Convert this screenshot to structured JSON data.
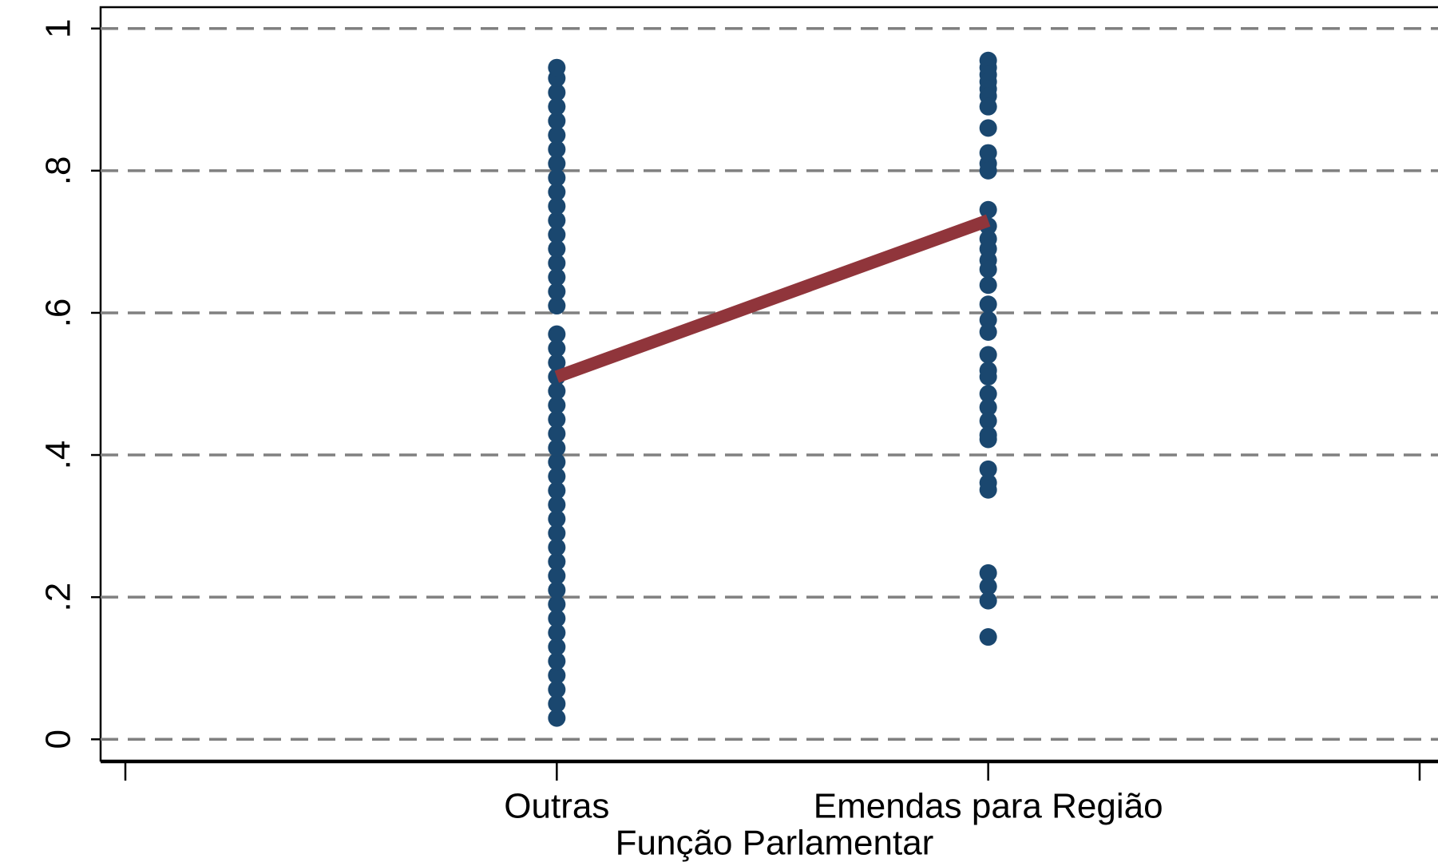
{
  "chart_data": {
    "type": "scatter",
    "x_label": "Função Parlamentar",
    "xlim": [
      -1,
      2
    ],
    "xticks": [
      {
        "value": 0,
        "label": "Outras"
      },
      {
        "value": 1,
        "label": "Emendas para Região"
      }
    ],
    "ylim": [
      -0.03,
      1.03
    ],
    "yticks": [
      0,
      {
        "value": 0.2,
        "label": ".2"
      },
      {
        "value": 0.4,
        "label": ".4"
      },
      {
        "value": 0.6,
        "label": ".6"
      },
      {
        "value": 0.8,
        "label": ".8"
      },
      1
    ],
    "grid": true,
    "series": [
      {
        "color": "#1a476f",
        "x": [
          0,
          0,
          0,
          0,
          0,
          0,
          0,
          0,
          0,
          0,
          0,
          0,
          0,
          0,
          0,
          0,
          0,
          0,
          0,
          0,
          0,
          0,
          0,
          0,
          0,
          0,
          0,
          0,
          0,
          0,
          0,
          0,
          0,
          0,
          0,
          0,
          0,
          0,
          0,
          0,
          0,
          0,
          0,
          0,
          0,
          0
        ],
        "values": [
          0.03,
          0.05,
          0.07,
          0.09,
          0.11,
          0.13,
          0.15,
          0.17,
          0.19,
          0.21,
          0.23,
          0.25,
          0.27,
          0.29,
          0.31,
          0.33,
          0.35,
          0.37,
          0.39,
          0.41,
          0.43,
          0.45,
          0.47,
          0.49,
          0.51,
          0.53,
          0.55,
          0.57,
          0.61,
          0.63,
          0.65,
          0.67,
          0.69,
          0.71,
          0.73,
          0.75,
          0.77,
          0.79,
          0.81,
          0.83,
          0.85,
          0.87,
          0.89,
          0.91,
          0.93,
          0.945
        ]
      },
      {
        "color": "#1a476f",
        "x": [
          1,
          1,
          1,
          1,
          1,
          1,
          1,
          1,
          1,
          1,
          1,
          1,
          1,
          1,
          1,
          1,
          1,
          1,
          1,
          1,
          1,
          1,
          1,
          1,
          1,
          1,
          1,
          1,
          1,
          1,
          1,
          1,
          1,
          1,
          1,
          1
        ],
        "values": [
          0.955,
          0.945,
          0.935,
          0.925,
          0.915,
          0.905,
          0.89,
          0.86,
          0.825,
          0.81,
          0.8,
          0.745,
          0.722,
          0.704,
          0.69,
          0.674,
          0.661,
          0.639,
          0.612,
          0.59,
          0.573,
          0.541,
          0.519,
          0.51,
          0.486,
          0.467,
          0.448,
          0.428,
          0.422,
          0.38,
          0.361,
          0.351,
          0.234,
          0.215,
          0.195,
          0.144
        ]
      },
      {
        "type": "line",
        "color": "#90353b",
        "x": [
          0,
          1
        ],
        "values": [
          0.51,
          0.73
        ]
      }
    ]
  }
}
